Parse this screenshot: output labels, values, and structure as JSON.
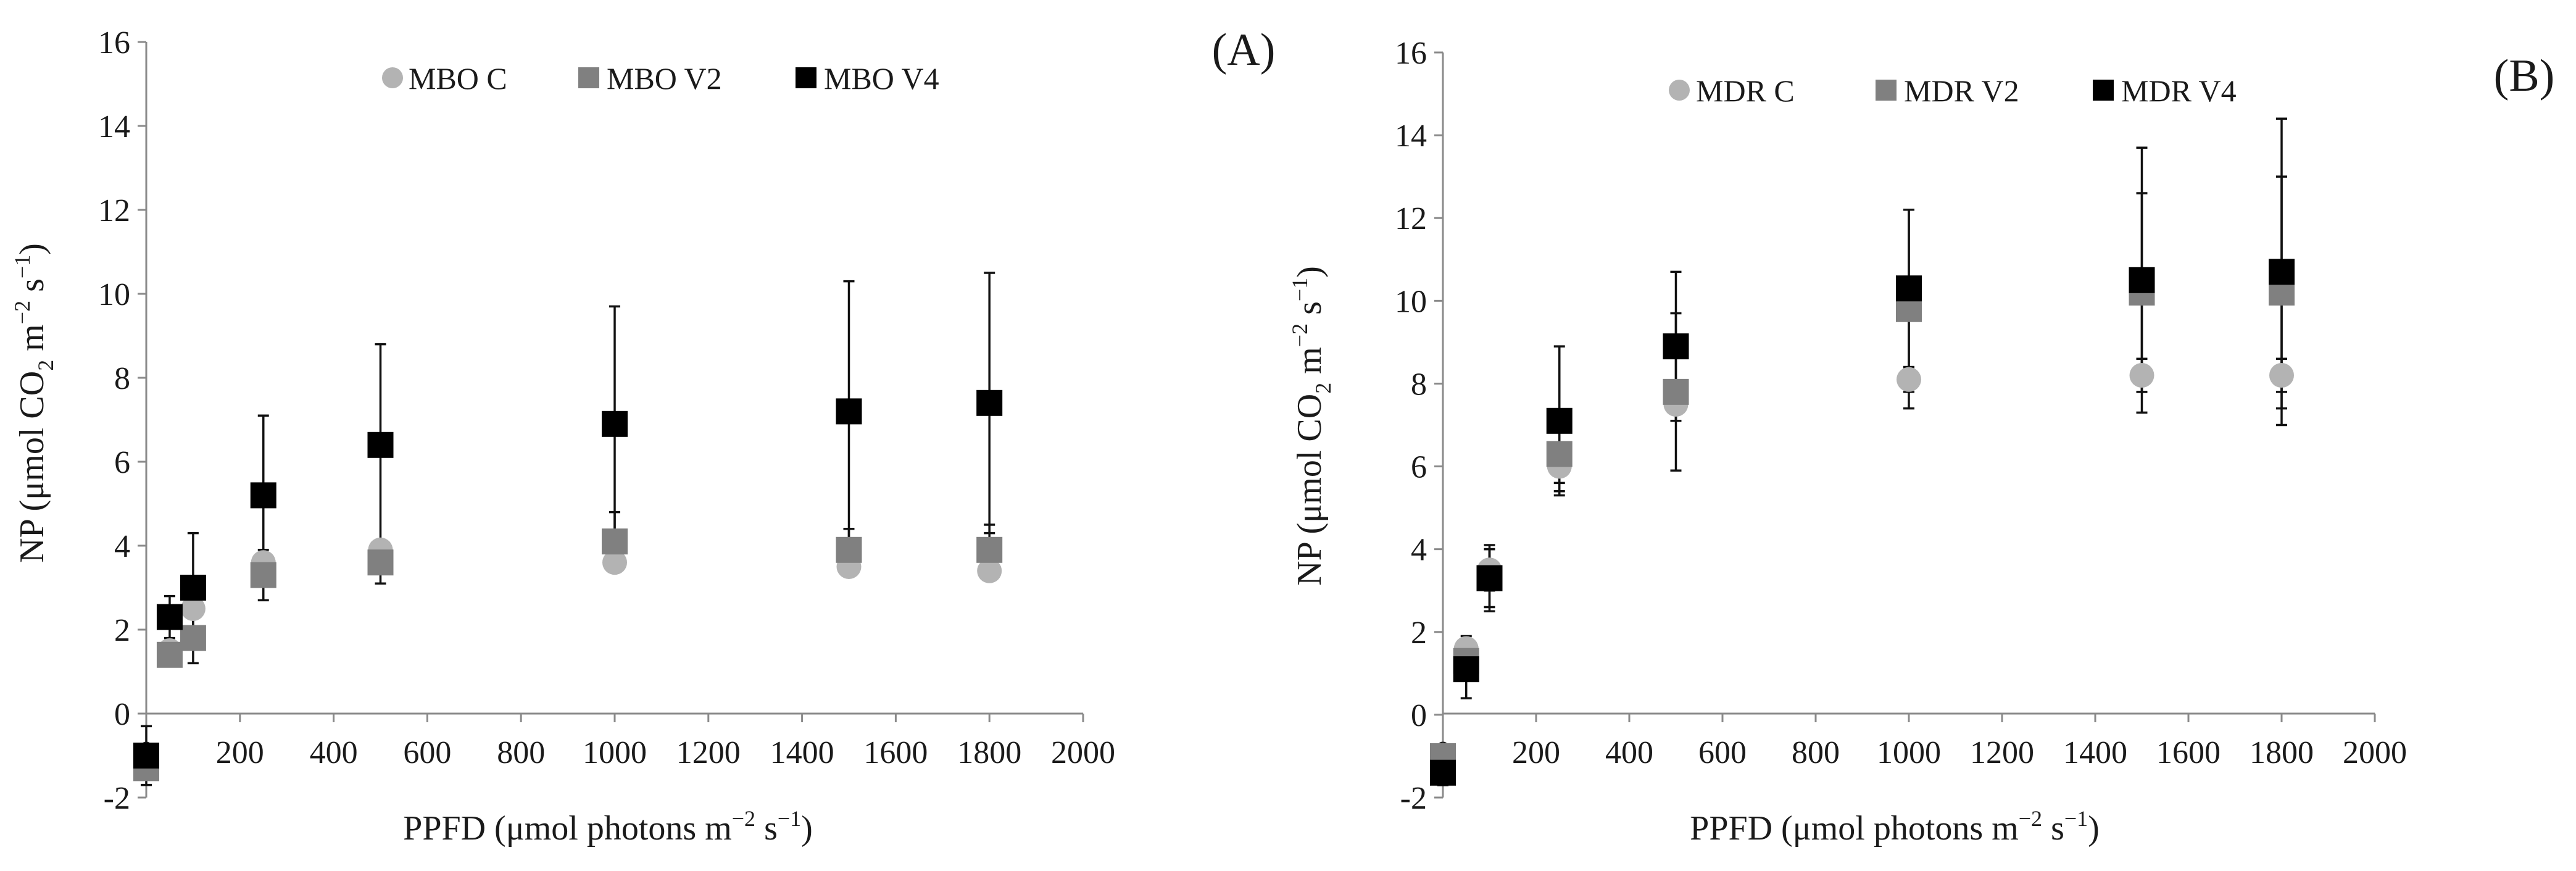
{
  "chart_data": [
    {
      "type": "scatter",
      "panel_label": "(A)",
      "xlabel": {
        "prefix": "PPFD (μmol photons m",
        "sup1": "−2",
        "mid": " s",
        "sup2": "−1",
        "suffix": ")"
      },
      "ylabel": {
        "prefix": "NP (μmol CO",
        "sub": "2",
        "mid1": " m",
        "sup1": "−2",
        "mid2": " s",
        "sup2": "−1",
        "suffix": ")"
      },
      "xlim": [
        0,
        2000
      ],
      "ylim": [
        -2,
        16
      ],
      "xticks": [
        "0",
        "200",
        "400",
        "600",
        "800",
        "1000",
        "1200",
        "1400",
        "1600",
        "1800",
        "2000"
      ],
      "yticks": [
        "-2",
        "0",
        "2",
        "4",
        "6",
        "8",
        "10",
        "12",
        "14",
        "16"
      ],
      "grid": false,
      "legend_position": "top",
      "series": [
        {
          "name": "MBO C",
          "marker": "circle",
          "color": "#b3b3b3",
          "x": [
            0,
            50,
            100,
            250,
            500,
            1000,
            1500,
            1800
          ],
          "y": [
            -1.2,
            1.5,
            2.5,
            3.6,
            3.9,
            3.6,
            3.5,
            3.4
          ],
          "err": [
            0,
            0,
            0,
            0,
            0,
            0,
            0,
            0
          ]
        },
        {
          "name": "MBO V2",
          "marker": "square",
          "color": "#808080",
          "x": [
            0,
            50,
            100,
            250,
            500,
            1000,
            1500,
            1800
          ],
          "y": [
            -1.3,
            1.4,
            1.8,
            3.3,
            3.6,
            4.1,
            3.9,
            3.9
          ],
          "err": [
            0,
            0,
            0.6,
            0.6,
            0.5,
            0.7,
            0.5,
            0.6
          ]
        },
        {
          "name": "MBO V4",
          "marker": "square",
          "color": "#000000",
          "x": [
            0,
            50,
            100,
            250,
            500,
            1000,
            1500,
            1800
          ],
          "y": [
            -1.0,
            2.3,
            3.0,
            5.2,
            6.4,
            6.9,
            7.2,
            7.4
          ],
          "err": [
            0.7,
            0.5,
            1.3,
            1.9,
            2.4,
            2.8,
            3.1,
            3.1
          ]
        }
      ]
    },
    {
      "type": "scatter",
      "panel_label": "(B)",
      "xlabel": {
        "prefix": "PPFD (μmol photons m",
        "sup1": "−2",
        "mid": " s",
        "sup2": "−1",
        "suffix": ")"
      },
      "ylabel": {
        "prefix": "NP (μmol CO",
        "sub": "2",
        "mid1": " m",
        "sup1": "−2",
        "mid2": " s",
        "sup2": "−1",
        "suffix": ")"
      },
      "xlim": [
        0,
        2000
      ],
      "ylim": [
        -2,
        16
      ],
      "xticks": [
        "0",
        "200",
        "400",
        "600",
        "800",
        "1000",
        "1200",
        "1400",
        "1600",
        "1800",
        "2000"
      ],
      "yticks": [
        "-2",
        "0",
        "2",
        "4",
        "6",
        "8",
        "10",
        "12",
        "14",
        "16"
      ],
      "grid": false,
      "legend_position": "top",
      "series": [
        {
          "name": "MDR C",
          "marker": "circle",
          "color": "#b3b3b3",
          "x": [
            0,
            50,
            100,
            250,
            500,
            1000,
            1500,
            1800
          ],
          "y": [
            -1.0,
            1.6,
            3.5,
            6.0,
            7.5,
            8.1,
            8.2,
            8.2
          ],
          "err": [
            0,
            0.3,
            0.5,
            0.4,
            0.4,
            0.3,
            0.4,
            0.4
          ]
        },
        {
          "name": "MDR V2",
          "marker": "square",
          "color": "#808080",
          "x": [
            0,
            50,
            100,
            250,
            500,
            1000,
            1500,
            1800
          ],
          "y": [
            -1.0,
            1.3,
            3.3,
            6.3,
            7.8,
            9.8,
            10.2,
            10.2
          ],
          "err": [
            0,
            0.4,
            0.7,
            0.9,
            1.9,
            2.4,
            2.4,
            2.8
          ]
        },
        {
          "name": "MDR V4",
          "marker": "square",
          "color": "#000000",
          "x": [
            0,
            50,
            100,
            250,
            500,
            1000,
            1500,
            1800
          ],
          "y": [
            -1.4,
            1.1,
            3.3,
            7.1,
            8.9,
            10.3,
            10.5,
            10.7
          ],
          "err": [
            0.3,
            0.7,
            0.8,
            1.8,
            1.8,
            1.9,
            3.2,
            3.7
          ]
        }
      ]
    }
  ]
}
